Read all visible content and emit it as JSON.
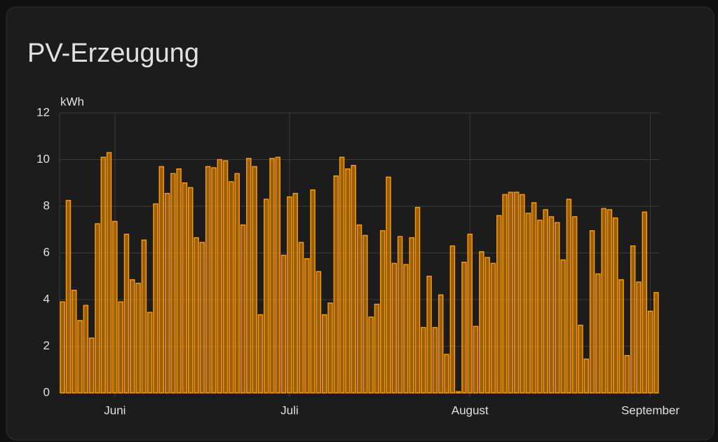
{
  "chart_data": {
    "type": "bar",
    "title": "PV-Erzeugung",
    "y_label": "kWh",
    "categories": [
      null,
      null,
      null,
      null,
      null,
      null,
      null,
      null,
      null,
      "Juni",
      null,
      null,
      null,
      null,
      null,
      null,
      null,
      null,
      null,
      null,
      null,
      null,
      null,
      null,
      null,
      null,
      null,
      null,
      null,
      null,
      null,
      null,
      null,
      null,
      null,
      null,
      null,
      null,
      null,
      "Juli",
      null,
      null,
      null,
      null,
      null,
      null,
      null,
      null,
      null,
      null,
      null,
      null,
      null,
      null,
      null,
      null,
      null,
      null,
      null,
      null,
      null,
      null,
      null,
      null,
      null,
      null,
      null,
      null,
      null,
      null,
      "August",
      null,
      null,
      null,
      null,
      null,
      null,
      null,
      null,
      null,
      null,
      null,
      null,
      null,
      null,
      null,
      null,
      null,
      null,
      null,
      null,
      null,
      null,
      null,
      null,
      null,
      null,
      null,
      null,
      null,
      null,
      "September",
      null
    ],
    "values": [
      3.9,
      8.25,
      4.4,
      3.1,
      3.75,
      2.35,
      7.25,
      10.1,
      10.3,
      7.35,
      3.9,
      6.8,
      4.85,
      4.7,
      6.55,
      3.45,
      8.1,
      9.7,
      8.55,
      9.4,
      9.6,
      9.0,
      8.8,
      6.65,
      6.45,
      9.7,
      9.65,
      10.0,
      9.95,
      9.05,
      9.4,
      7.2,
      10.05,
      9.7,
      3.35,
      8.3,
      10.05,
      10.1,
      5.9,
      8.4,
      8.55,
      6.45,
      5.75,
      8.7,
      5.2,
      3.35,
      3.85,
      9.3,
      10.1,
      9.6,
      9.75,
      7.2,
      6.75,
      3.25,
      3.8,
      6.95,
      9.25,
      5.55,
      6.7,
      5.5,
      6.65,
      7.95,
      2.8,
      5.0,
      2.8,
      4.2,
      1.65,
      6.3,
      0.05,
      5.6,
      6.8,
      2.85,
      6.05,
      5.8,
      5.55,
      7.6,
      8.5,
      8.6,
      8.6,
      8.5,
      7.7,
      8.15,
      7.4,
      7.85,
      7.55,
      7.3,
      5.7,
      8.3,
      7.55,
      2.9,
      1.45,
      6.95,
      5.1,
      7.9,
      7.85,
      7.5,
      4.85,
      1.6,
      6.3,
      4.75,
      7.75,
      3.5,
      4.3
    ],
    "color": "#ff9800",
    "ylim": [
      0,
      12
    ],
    "yticks": [
      0,
      2,
      4,
      6,
      8,
      10,
      12
    ],
    "grid": true
  }
}
